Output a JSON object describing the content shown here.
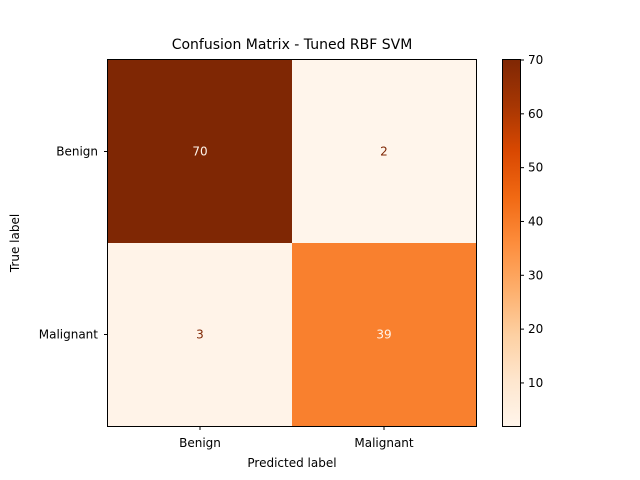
{
  "chart_data": {
    "type": "heatmap",
    "title": "Confusion Matrix - Tuned RBF SVM",
    "xlabel": "Predicted label",
    "ylabel": "True label",
    "x_categories": [
      "Benign",
      "Malignant"
    ],
    "y_categories": [
      "Benign",
      "Malignant"
    ],
    "values": [
      [
        70,
        2
      ],
      [
        3,
        39
      ]
    ],
    "colormap": "Oranges",
    "colorbar": {
      "min": 2,
      "max": 70,
      "ticks": [
        10,
        20,
        30,
        40,
        50,
        60,
        70
      ]
    },
    "colors": {
      "low": "#fff5eb",
      "high": "#7f2704",
      "text_on_dark": "#fff5eb",
      "text_on_light": "#7f2704"
    }
  }
}
